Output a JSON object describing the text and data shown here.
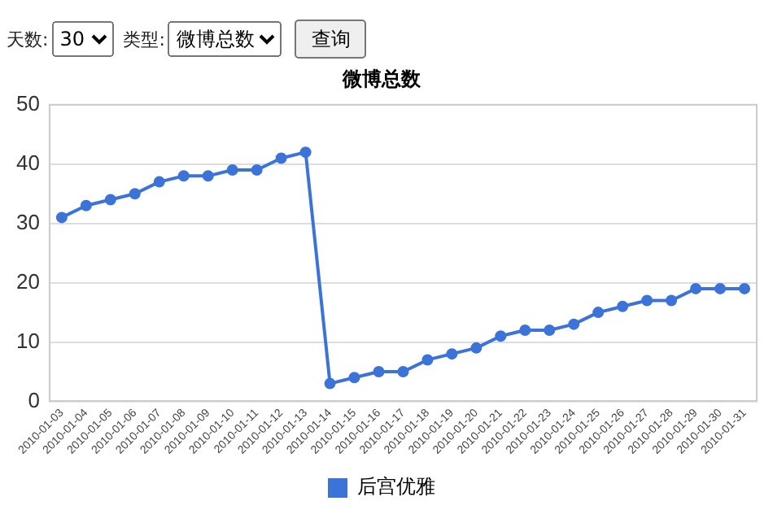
{
  "chart_data": {
    "type": "line",
    "title": "微博总数",
    "categories": [
      "2010-01-03",
      "2010-01-04",
      "2010-01-05",
      "2010-01-06",
      "2010-01-07",
      "2010-01-08",
      "2010-01-09",
      "2010-01-10",
      "2010-01-11",
      "2010-01-12",
      "2010-01-13",
      "2010-01-14",
      "2010-01-15",
      "2010-01-16",
      "2010-01-17",
      "2010-01-18",
      "2010-01-19",
      "2010-01-20",
      "2010-01-21",
      "2010-01-22",
      "2010-01-23",
      "2010-01-24",
      "2010-01-25",
      "2010-01-26",
      "2010-01-27",
      "2010-01-28",
      "2010-01-29",
      "2010-01-30",
      "2010-01-31"
    ],
    "series": [
      {
        "name": "后宫优雅",
        "color": "#3b73d9",
        "values": [
          31,
          33,
          34,
          35,
          37,
          38,
          38,
          39,
          39,
          41,
          42,
          3,
          4,
          5,
          5,
          7,
          8,
          9,
          11,
          12,
          12,
          13,
          15,
          16,
          17,
          17,
          19,
          19,
          19
        ]
      }
    ],
    "ylim": [
      0,
      50
    ],
    "yticks": [
      0,
      10,
      20,
      30,
      40,
      50
    ],
    "grid": "y",
    "legend": "bottom",
    "marker": "circle",
    "line_style": "solid",
    "annotations": [
      "天数:",
      "30",
      "类型:",
      "微博总数",
      "查询"
    ]
  }
}
